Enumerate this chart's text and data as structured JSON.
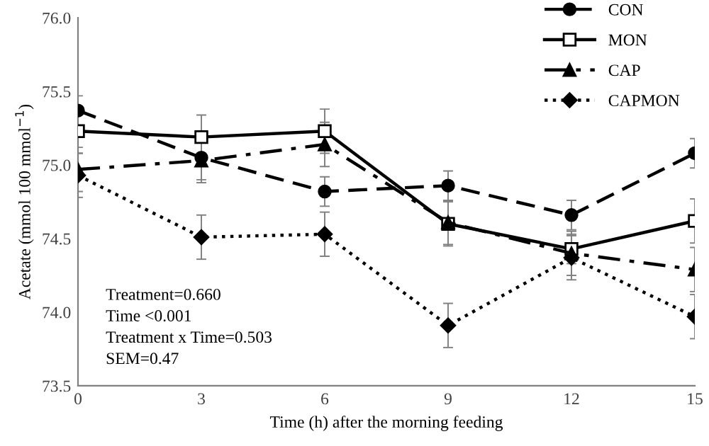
{
  "chart_data": {
    "type": "line",
    "xlabel": "Time (h) after the morning feeding",
    "ylabel": "Acetate (mmol 100 mmol$^{−1}$)",
    "x": [
      0,
      3,
      6,
      9,
      12,
      15
    ],
    "xlim": [
      0,
      15
    ],
    "xticks": [
      0,
      3,
      6,
      9,
      12,
      15
    ],
    "ylim": [
      73.5,
      76.0
    ],
    "yticks": [
      {
        "value": 73.5,
        "label": "73.5"
      },
      {
        "value": 74.0,
        "label": "74.0"
      },
      {
        "value": 74.5,
        "label": "74.5"
      },
      {
        "value": 75.0,
        "label": "75.0"
      },
      {
        "value": 75.5,
        "label": "75.5"
      },
      {
        "value": 76.0,
        "label": "76.0"
      }
    ],
    "grid": false,
    "legend": "top right",
    "series": [
      {
        "name": "CON",
        "color": "#000000",
        "line_style": "dashed",
        "marker": "circle",
        "values": [
          75.37,
          75.05,
          74.82,
          74.86,
          74.66,
          75.08
        ],
        "errors": [
          0.1,
          0.15,
          0.1,
          0.1,
          0.1,
          0.1
        ]
      },
      {
        "name": "MON",
        "color": "#000000",
        "line_style": "solid",
        "marker": "square",
        "values": [
          75.23,
          75.19,
          75.23,
          74.6,
          74.43,
          74.62
        ],
        "errors": [
          0.15,
          0.15,
          0.15,
          0.15,
          0.1,
          0.15
        ]
      },
      {
        "name": "CAP",
        "color": "#000000",
        "line_style": "dashdot",
        "marker": "triangle",
        "values": [
          74.97,
          75.03,
          75.14,
          74.61,
          74.4,
          74.29
        ],
        "errors": [
          0.15,
          0.15,
          0.15,
          0.15,
          0.15,
          0.15
        ]
      },
      {
        "name": "CAPMON",
        "color": "#000000",
        "line_style": "dotted",
        "marker": "diamond",
        "values": [
          74.93,
          74.51,
          74.53,
          73.91,
          74.37,
          73.97
        ],
        "errors": [
          0.15,
          0.15,
          0.15,
          0.15,
          0.15,
          0.15
        ]
      }
    ],
    "annotations": [
      "Treatment=0.660",
      "Time <0.001",
      "Treatment x Time=0.503",
      "SEM=0.47"
    ]
  }
}
